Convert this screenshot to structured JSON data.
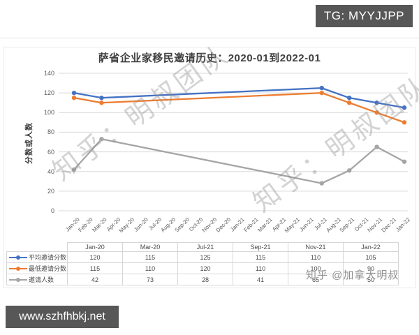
{
  "header": {
    "tg_badge": "TG: MYYJJPP"
  },
  "footer": {
    "site_badge": "www.szhfhbkj.net"
  },
  "watermarks": {
    "diagonal_text": "知乎：明叔团队",
    "table_overlay_text": "知乎 @加拿大明叔"
  },
  "chart_data": {
    "type": "line",
    "title": "萨省企业家移民邀请历史：2020-01到2022-01",
    "ylabel": "分数或人数",
    "ylim": [
      0,
      140
    ],
    "ytick_step": 20,
    "grid": true,
    "legend_position": "data-table-left",
    "x_axis_categories": [
      "Jan-20",
      "Feb-20",
      "Mar-20",
      "Apr-20",
      "May-20",
      "Jun-20",
      "Jul-20",
      "Aug-20",
      "Sep-20",
      "Oct-20",
      "Nov-20",
      "Dec-20",
      "Jan-21",
      "Feb-21",
      "Mar-21",
      "Apr-21",
      "May-21",
      "Jun-21",
      "Jul-21",
      "Aug-21",
      "Sep-21",
      "Oct-21",
      "Nov-21",
      "Dec-21",
      "Jan-22"
    ],
    "data_categories": [
      "Jan-20",
      "Mar-20",
      "Jul-21",
      "Sep-21",
      "Nov-21",
      "Jan-22"
    ],
    "series": [
      {
        "name": "平均邀请分数",
        "color": "#4472C4",
        "values": [
          120,
          115,
          125,
          115,
          110,
          105
        ]
      },
      {
        "name": "最低邀请分数",
        "color": "#ED7D31",
        "values": [
          115,
          110,
          120,
          110,
          100,
          90
        ]
      },
      {
        "name": "邀请人数",
        "color": "#A5A5A5",
        "values": [
          42,
          73,
          28,
          41,
          65,
          50
        ]
      }
    ],
    "colors": {
      "gridline": "#d9d9d9",
      "axis_text": "#595959",
      "title_text": "#3f3f3f"
    }
  }
}
